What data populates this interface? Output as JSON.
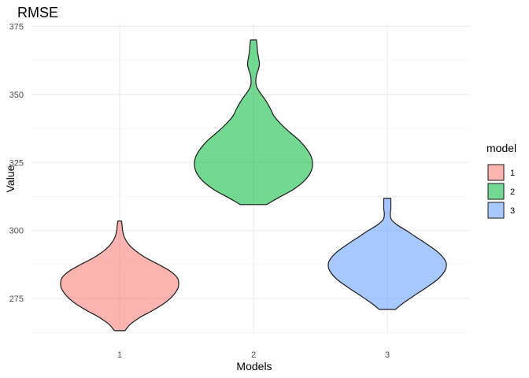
{
  "chart_data": {
    "type": "violin",
    "title": "RMSE",
    "xlabel": "Models",
    "ylabel": "Value",
    "categories": [
      "1",
      "2",
      "3"
    ],
    "y_ticks": [
      275,
      300,
      325,
      350,
      375
    ],
    "ylim": [
      262,
      376
    ],
    "grid": true,
    "legend": {
      "title": "model",
      "position": "right",
      "entries": [
        "1",
        "2",
        "3"
      ]
    },
    "colors": [
      "#F8766D",
      "#00BA38",
      "#619CFF"
    ],
    "fill_opacity": 0.55,
    "series": [
      {
        "category": "1",
        "y_min": 263.2,
        "y_max": 303.5,
        "density_profile": [
          [
            263.2,
            0.09
          ],
          [
            265.5,
            0.18
          ],
          [
            268.0,
            0.34
          ],
          [
            270.5,
            0.55
          ],
          [
            273.0,
            0.74
          ],
          [
            275.5,
            0.88
          ],
          [
            278.0,
            0.97
          ],
          [
            280.0,
            1.0
          ],
          [
            282.5,
            0.98
          ],
          [
            285.0,
            0.86
          ],
          [
            287.5,
            0.66
          ],
          [
            290.0,
            0.44
          ],
          [
            292.5,
            0.27
          ],
          [
            295.0,
            0.15
          ],
          [
            297.5,
            0.08
          ],
          [
            300.0,
            0.05
          ],
          [
            302.0,
            0.04
          ],
          [
            303.5,
            0.03
          ]
        ]
      },
      {
        "category": "2",
        "y_min": 309.5,
        "y_max": 370.0,
        "density_profile": [
          [
            309.5,
            0.22
          ],
          [
            312.0,
            0.42
          ],
          [
            315.0,
            0.67
          ],
          [
            318.0,
            0.85
          ],
          [
            321.0,
            0.96
          ],
          [
            324.0,
            1.0
          ],
          [
            327.0,
            0.98
          ],
          [
            330.0,
            0.9
          ],
          [
            333.0,
            0.78
          ],
          [
            336.0,
            0.62
          ],
          [
            339.0,
            0.47
          ],
          [
            342.0,
            0.35
          ],
          [
            345.0,
            0.28
          ],
          [
            348.0,
            0.2
          ],
          [
            351.0,
            0.1
          ],
          [
            353.0,
            0.05
          ],
          [
            355.0,
            0.04
          ],
          [
            357.0,
            0.05
          ],
          [
            359.0,
            0.08
          ],
          [
            361.0,
            0.1
          ],
          [
            363.0,
            0.09
          ],
          [
            365.5,
            0.07
          ],
          [
            368.0,
            0.06
          ],
          [
            370.0,
            0.05
          ]
        ]
      },
      {
        "category": "3",
        "y_min": 271.0,
        "y_max": 311.8,
        "density_profile": [
          [
            271.0,
            0.14
          ],
          [
            273.0,
            0.25
          ],
          [
            276.0,
            0.45
          ],
          [
            279.0,
            0.66
          ],
          [
            282.0,
            0.85
          ],
          [
            285.0,
            0.97
          ],
          [
            287.0,
            1.0
          ],
          [
            289.0,
            0.98
          ],
          [
            292.0,
            0.86
          ],
          [
            295.0,
            0.67
          ],
          [
            298.0,
            0.46
          ],
          [
            300.0,
            0.32
          ],
          [
            302.0,
            0.17
          ],
          [
            304.0,
            0.07
          ],
          [
            306.0,
            0.05
          ],
          [
            308.0,
            0.06
          ],
          [
            310.0,
            0.06
          ],
          [
            311.8,
            0.06
          ]
        ]
      }
    ]
  }
}
